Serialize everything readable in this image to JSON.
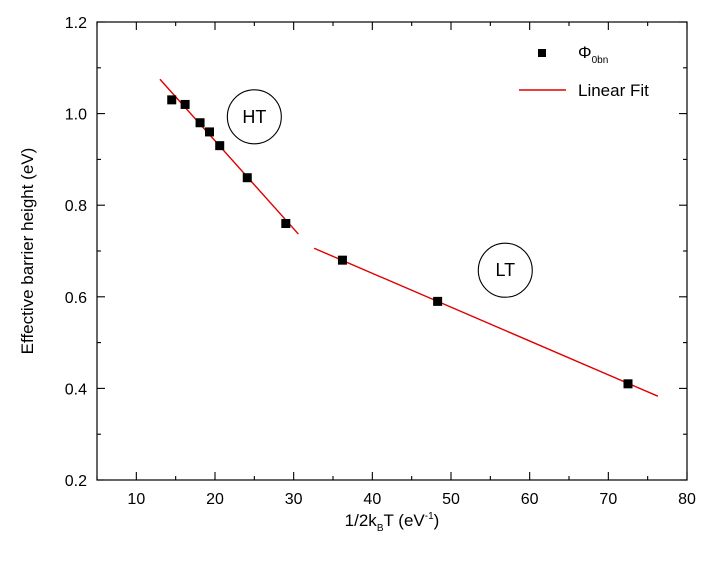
{
  "chart_data": {
    "type": "scatter",
    "title": "",
    "xlabel": "1/2k",
    "xlabel_sub": "B",
    "xlabel_mid": "T (eV",
    "xlabel_sup": "-1",
    "xlabel_end": ")",
    "ylabel": "Effective barrier height (eV)",
    "xlim": [
      5,
      80
    ],
    "ylim": [
      0.2,
      1.2
    ],
    "xticks": [
      10,
      20,
      30,
      40,
      50,
      60,
      70,
      80
    ],
    "yticks": [
      0.2,
      0.4,
      0.6,
      0.8,
      1.0,
      1.2
    ],
    "xtick_labels": [
      "10",
      "20",
      "30",
      "40",
      "50",
      "60",
      "70",
      "80"
    ],
    "ytick_labels": [
      "0.2",
      "0.4",
      "0.6",
      "0.8",
      "1.0",
      "1.2"
    ],
    "grid": false,
    "legend_position": "top-right",
    "series": [
      {
        "name_main": "Φ",
        "name_sub": "0bn",
        "kind": "scatter",
        "marker": "square",
        "color": "#000000",
        "x": [
          14.5,
          16.2,
          18.1,
          19.3,
          20.6,
          24.1,
          29.0,
          36.2,
          48.3,
          72.5
        ],
        "y": [
          1.03,
          1.02,
          0.98,
          0.96,
          0.93,
          0.86,
          0.76,
          0.68,
          0.59,
          0.41
        ]
      },
      {
        "name": "Linear Fit",
        "kind": "line",
        "color": "#e00000",
        "segments": [
          {
            "x": [
              13.0,
              30.6
            ],
            "y": [
              1.075,
              0.737
            ]
          },
          {
            "x": [
              32.6,
              76.3
            ],
            "y": [
              0.706,
              0.383
            ]
          }
        ]
      }
    ],
    "annotations": [
      {
        "text": "HT",
        "x": 25.0,
        "y": 0.993
      },
      {
        "text": "LT",
        "x": 56.9,
        "y": 0.658
      }
    ]
  }
}
